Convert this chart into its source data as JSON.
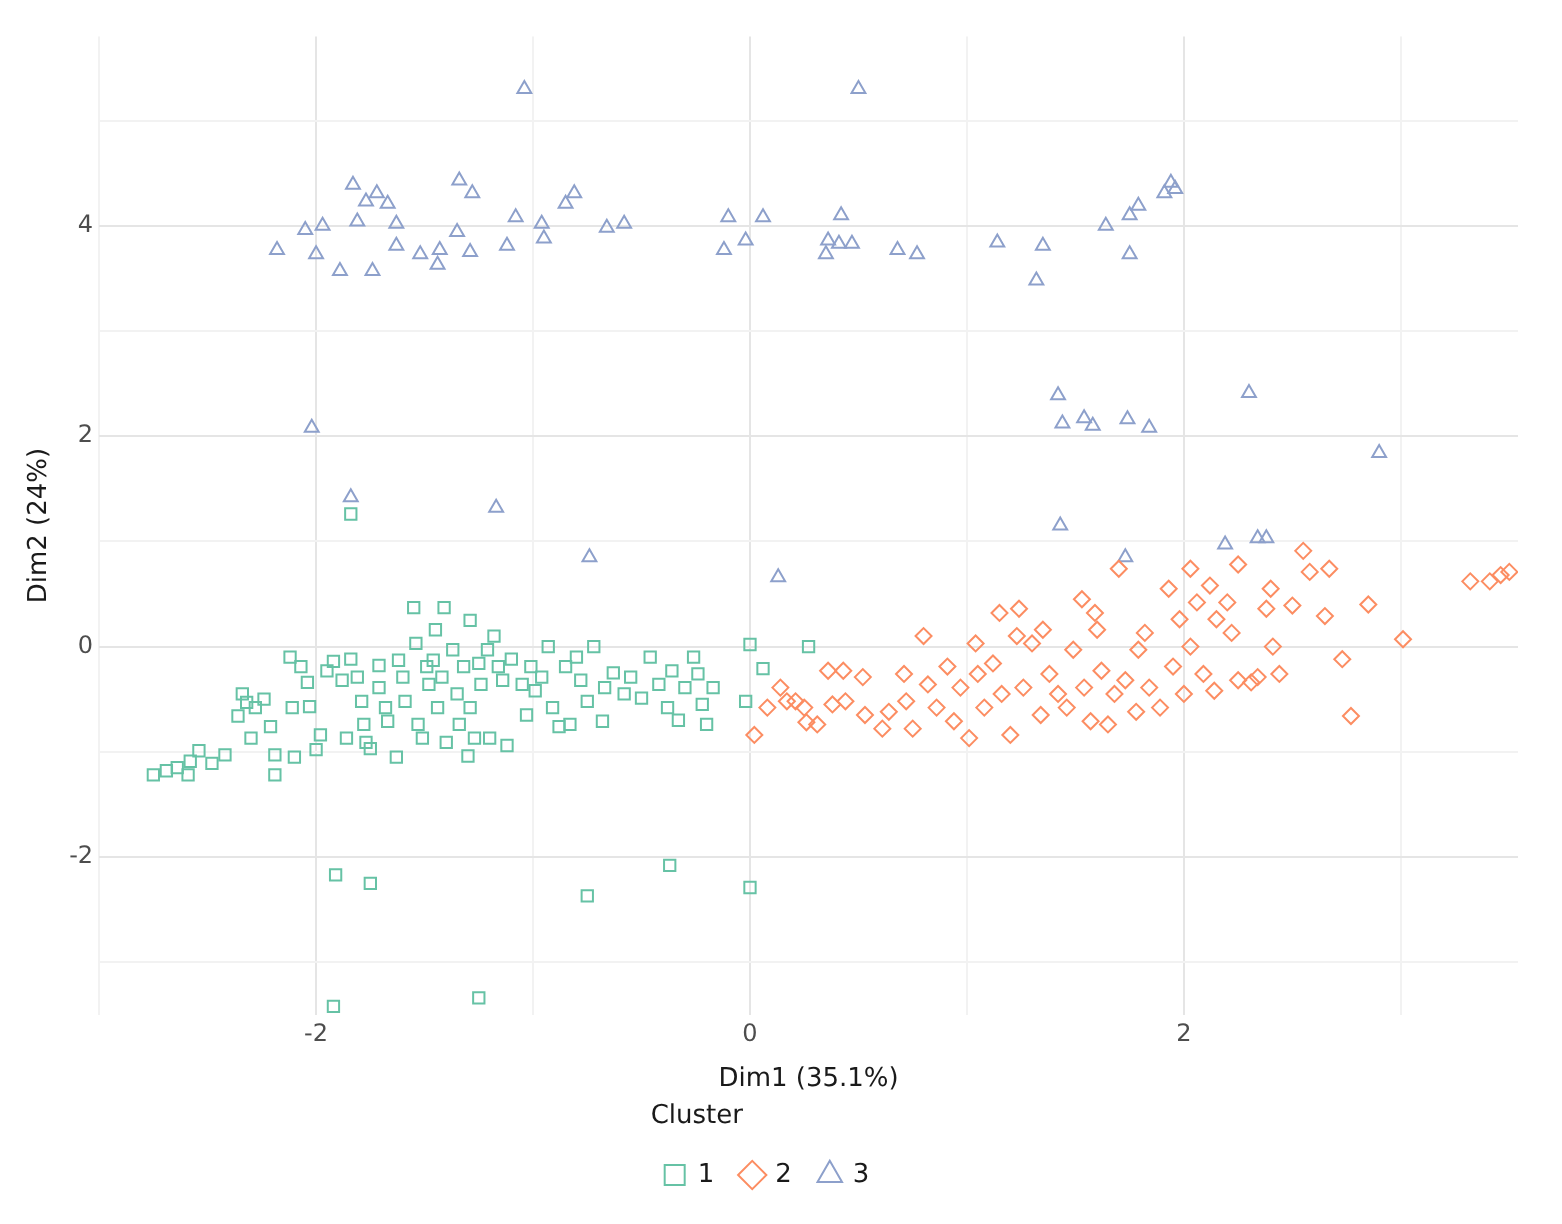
{
  "chart_data": {
    "type": "scatter",
    "xlabel": "Dim1 (35.1%)",
    "ylabel": "Dim2 (24%)",
    "legend_title": "Cluster",
    "legend": "bottom",
    "grid": true,
    "xlim": [
      -3.0,
      3.54
    ],
    "ylim": [
      -3.5,
      5.8
    ],
    "xticks": [
      {
        "value": -3,
        "label": null
      },
      -2,
      {
        "value": -1,
        "label": null
      },
      0,
      {
        "value": 1,
        "label": null
      },
      2,
      {
        "value": 3,
        "label": null
      }
    ],
    "yticks": [
      {
        "value": -3,
        "label": null
      },
      -2,
      {
        "value": -1,
        "label": null
      },
      0,
      {
        "value": 1,
        "label": null
      },
      2,
      {
        "value": 3,
        "label": null
      },
      4,
      {
        "value": 5,
        "label": null
      }
    ],
    "series": [
      {
        "name": "1",
        "color": "#66c2a5",
        "marker": "square",
        "x": [
          -2.34,
          -2.32,
          -2.28,
          -2.36,
          -2.24,
          -2.3,
          -2.21,
          -2.12,
          -2.07,
          -2.04,
          -2.11,
          -2.03,
          -1.98,
          -2.0,
          -1.95,
          -1.92,
          -1.88,
          -1.86,
          -1.84,
          -1.81,
          -1.79,
          -1.78,
          -1.77,
          -1.75,
          -1.71,
          -1.71,
          -1.68,
          -1.67,
          -1.63,
          -1.62,
          -1.6,
          -1.59,
          -1.54,
          -1.53,
          -1.51,
          -1.49,
          -1.48,
          -1.46,
          -1.45,
          -1.44,
          -1.42,
          -1.4,
          -1.37,
          -1.35,
          -1.34,
          -1.32,
          -1.3,
          -1.29,
          -1.27,
          -1.25,
          -1.24,
          -1.21,
          -1.2,
          -1.18,
          -1.16,
          -1.14,
          -1.12,
          -1.1,
          -1.05,
          -1.03,
          -1.01,
          -0.99,
          -0.96,
          -0.93,
          -0.91,
          -0.88,
          -0.85,
          -0.83,
          -0.8,
          -0.78,
          -0.75,
          -0.72,
          -0.68,
          -0.67,
          -0.63,
          -0.58,
          -0.55,
          -0.5,
          -0.46,
          -0.42,
          -0.38,
          -0.36,
          -0.33,
          -0.3,
          -0.26,
          -0.24,
          -0.22,
          -0.2,
          -0.17,
          -1.55,
          -1.41,
          -1.29,
          0.0,
          0.27,
          0.06,
          -0.02,
          -2.75,
          -2.69,
          -2.64,
          -2.59,
          -2.58,
          -2.54,
          -2.48,
          -2.42,
          -2.19,
          -2.19,
          -2.1,
          -1.84,
          -1.91,
          -1.75,
          -0.75,
          -0.37,
          0.0,
          -1.92,
          -1.25
        ],
        "values": [
          -0.45,
          -0.53,
          -0.58,
          -0.66,
          -0.5,
          -0.87,
          -0.76,
          -0.1,
          -0.19,
          -0.34,
          -0.58,
          -0.57,
          -0.84,
          -0.98,
          -0.23,
          -0.14,
          -0.32,
          -0.87,
          -0.12,
          -0.29,
          -0.52,
          -0.74,
          -0.91,
          -0.97,
          -0.18,
          -0.39,
          -0.58,
          -0.71,
          -1.05,
          -0.13,
          -0.29,
          -0.52,
          0.03,
          -0.74,
          -0.87,
          -0.19,
          -0.36,
          -0.13,
          0.16,
          -0.58,
          -0.29,
          -0.91,
          -0.03,
          -0.45,
          -0.74,
          -0.19,
          -1.04,
          -0.58,
          -0.87,
          -0.16,
          -0.36,
          -0.03,
          -0.87,
          0.1,
          -0.19,
          -0.32,
          -0.94,
          -0.12,
          -0.36,
          -0.65,
          -0.19,
          -0.42,
          -0.29,
          0.0,
          -0.58,
          -0.76,
          -0.19,
          -0.74,
          -0.1,
          -0.32,
          -0.52,
          0.0,
          -0.71,
          -0.39,
          -0.25,
          -0.45,
          -0.29,
          -0.49,
          -0.1,
          -0.36,
          -0.58,
          -0.23,
          -0.7,
          -0.39,
          -0.1,
          -0.26,
          -0.55,
          -0.74,
          -0.39,
          0.37,
          0.37,
          0.25,
          0.02,
          0.0,
          -0.21,
          -0.52,
          -1.22,
          -1.18,
          -1.15,
          -1.22,
          -1.09,
          -0.99,
          -1.11,
          -1.03,
          -1.22,
          -1.03,
          -1.05,
          1.26,
          -2.17,
          -2.25,
          -2.37,
          -2.08,
          -2.29,
          -3.42,
          -3.34
        ]
      },
      {
        "name": "2",
        "color": "#fc8d62",
        "marker": "diamond",
        "x": [
          0.14,
          0.02,
          0.08,
          0.21,
          0.26,
          0.17,
          0.25,
          0.31,
          0.36,
          0.43,
          0.38,
          0.44,
          0.52,
          0.53,
          0.61,
          0.64,
          0.71,
          0.72,
          0.75,
          0.8,
          0.82,
          0.86,
          0.91,
          0.94,
          0.97,
          1.01,
          1.04,
          1.05,
          1.08,
          1.12,
          1.15,
          1.16,
          1.2,
          1.23,
          1.24,
          1.26,
          1.3,
          1.34,
          1.35,
          1.38,
          1.42,
          1.46,
          1.49,
          1.53,
          1.54,
          1.57,
          1.59,
          1.6,
          1.62,
          1.65,
          1.68,
          1.7,
          1.73,
          1.78,
          1.79,
          1.82,
          1.84,
          1.89,
          1.93,
          1.95,
          1.98,
          2.0,
          2.03,
          2.03,
          2.06,
          2.09,
          2.12,
          2.14,
          2.15,
          2.2,
          2.22,
          2.25,
          2.25,
          2.31,
          2.34,
          2.38,
          2.4,
          2.41,
          2.44,
          2.5,
          2.55,
          2.58,
          2.65,
          2.67,
          2.73,
          2.77,
          2.85,
          3.01,
          3.32,
          3.41,
          3.46,
          3.5
        ],
        "values": [
          -0.39,
          -0.84,
          -0.58,
          -0.52,
          -0.72,
          -0.52,
          -0.58,
          -0.74,
          -0.23,
          -0.23,
          -0.55,
          -0.52,
          -0.29,
          -0.65,
          -0.78,
          -0.62,
          -0.26,
          -0.52,
          -0.78,
          0.1,
          -0.36,
          -0.58,
          -0.19,
          -0.71,
          -0.39,
          -0.87,
          0.03,
          -0.26,
          -0.58,
          -0.16,
          0.32,
          -0.45,
          -0.84,
          0.1,
          0.36,
          -0.39,
          0.03,
          -0.65,
          0.16,
          -0.26,
          -0.45,
          -0.58,
          -0.03,
          0.45,
          -0.39,
          -0.71,
          0.32,
          0.16,
          -0.23,
          -0.74,
          -0.45,
          0.74,
          -0.32,
          -0.62,
          -0.03,
          0.13,
          -0.39,
          -0.58,
          0.55,
          -0.19,
          0.26,
          -0.45,
          0.74,
          0.0,
          0.42,
          -0.26,
          0.58,
          -0.42,
          0.26,
          0.42,
          0.13,
          0.78,
          -0.32,
          -0.34,
          -0.29,
          0.36,
          0.55,
          0.0,
          -0.26,
          0.39,
          0.91,
          0.71,
          0.29,
          0.74,
          -0.12,
          -0.66,
          0.4,
          0.07,
          0.62,
          0.62,
          0.68,
          0.71
        ]
      },
      {
        "name": "3",
        "color": "#8da0cb",
        "marker": "triangle",
        "x": [
          -1.04,
          -2.18,
          -2.05,
          -1.97,
          -2.0,
          -1.83,
          -1.77,
          -1.72,
          -1.67,
          -1.81,
          -1.63,
          -1.89,
          -1.74,
          -1.63,
          -1.52,
          -1.44,
          -1.43,
          -1.35,
          -1.29,
          -1.34,
          -1.28,
          -1.12,
          -1.08,
          -0.96,
          -0.95,
          -0.85,
          -0.81,
          -0.66,
          -0.58,
          -0.1,
          -0.12,
          -0.02,
          0.06,
          -2.02,
          -1.84,
          -1.17,
          -0.74,
          0.13,
          0.5,
          0.42,
          0.36,
          0.41,
          0.35,
          0.47,
          0.68,
          0.77,
          1.14,
          1.35,
          1.32,
          1.64,
          1.75,
          1.79,
          1.91,
          1.94,
          1.96,
          1.75,
          1.42,
          1.44,
          1.54,
          1.58,
          1.74,
          1.84,
          2.3,
          2.9,
          1.43,
          1.73,
          2.19,
          2.34,
          2.38
        ],
        "values": [
          5.3,
          3.77,
          3.96,
          4.0,
          3.73,
          4.39,
          4.23,
          4.31,
          4.21,
          4.04,
          4.02,
          3.57,
          3.57,
          3.81,
          3.73,
          3.63,
          3.77,
          3.94,
          3.75,
          4.43,
          4.31,
          3.81,
          4.08,
          4.02,
          3.88,
          4.21,
          4.31,
          3.98,
          4.02,
          4.08,
          3.77,
          3.86,
          4.08,
          2.08,
          1.42,
          1.32,
          0.85,
          0.66,
          5.3,
          4.1,
          3.86,
          3.83,
          3.73,
          3.83,
          3.77,
          3.73,
          3.84,
          3.81,
          3.48,
          4.0,
          4.1,
          4.19,
          4.31,
          4.41,
          4.35,
          3.73,
          2.39,
          2.12,
          2.17,
          2.1,
          2.16,
          2.08,
          2.41,
          1.84,
          1.15,
          0.85,
          0.97,
          1.03,
          1.03
        ]
      }
    ]
  }
}
